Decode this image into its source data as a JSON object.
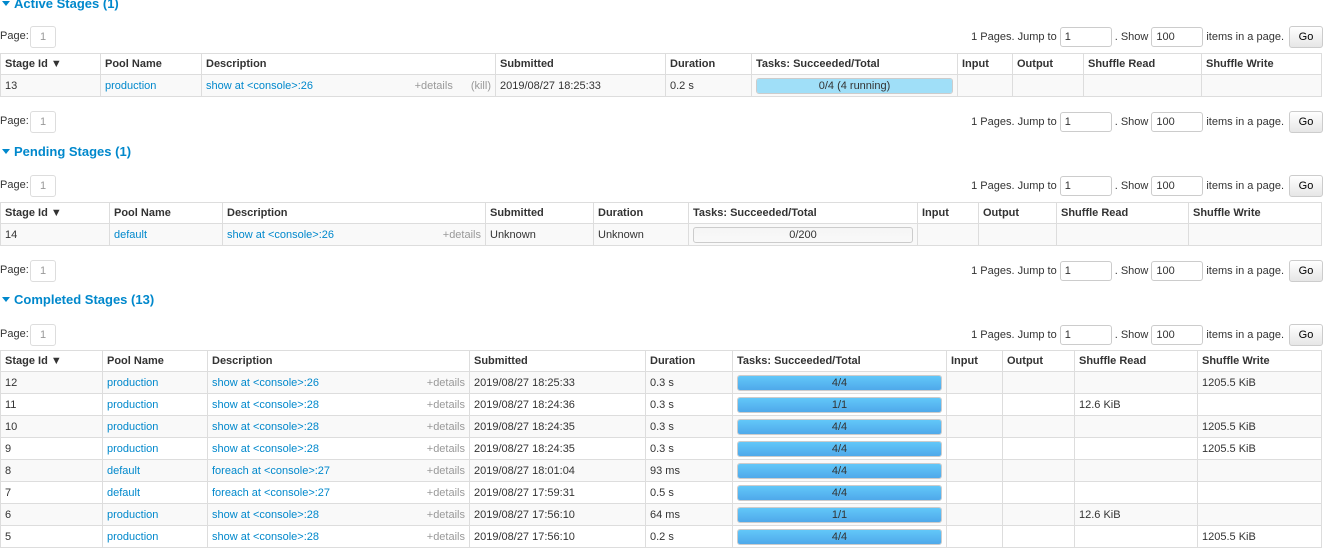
{
  "pager": {
    "page_label": "Page:",
    "page": "1",
    "pages_text": "1 Pages. Jump to",
    "jump_value": "1",
    "show_text": ". Show",
    "show_value": "100",
    "items_text": "items in a page.",
    "go_label": "Go"
  },
  "columns": [
    "Stage Id ▼",
    "Pool Name",
    "Description",
    "Submitted",
    "Duration",
    "Tasks: Succeeded/Total",
    "Input",
    "Output",
    "Shuffle Read",
    "Shuffle Write"
  ],
  "details_label": "+details",
  "kill_label": "(kill)",
  "sections": [
    {
      "title": "Active Stages (1)",
      "rows": [
        {
          "id": "13",
          "pool": "production",
          "desc": "show at <console>:26",
          "submitted": "2019/08/27 18:25:33",
          "duration": "0.2 s",
          "tasks": "0/4 (4 running)",
          "succeeded": 0,
          "running": 4,
          "total": 4,
          "input": "",
          "output": "",
          "read": "",
          "write": "",
          "kill": true
        }
      ]
    },
    {
      "title": "Pending Stages (1)",
      "rows": [
        {
          "id": "14",
          "pool": "default",
          "desc": "show at <console>:26",
          "submitted": "Unknown",
          "duration": "Unknown",
          "tasks": "0/200",
          "succeeded": 0,
          "running": 0,
          "total": 200,
          "input": "",
          "output": "",
          "read": "",
          "write": ""
        }
      ]
    },
    {
      "title": "Completed Stages (13)",
      "rows": [
        {
          "id": "12",
          "pool": "production",
          "desc": "show at <console>:26",
          "submitted": "2019/08/27 18:25:33",
          "duration": "0.3 s",
          "tasks": "4/4",
          "succeeded": 4,
          "running": 0,
          "total": 4,
          "input": "",
          "output": "",
          "read": "",
          "write": "1205.5 KiB"
        },
        {
          "id": "11",
          "pool": "production",
          "desc": "show at <console>:28",
          "submitted": "2019/08/27 18:24:36",
          "duration": "0.3 s",
          "tasks": "1/1",
          "succeeded": 1,
          "running": 0,
          "total": 1,
          "input": "",
          "output": "",
          "read": "12.6 KiB",
          "write": ""
        },
        {
          "id": "10",
          "pool": "production",
          "desc": "show at <console>:28",
          "submitted": "2019/08/27 18:24:35",
          "duration": "0.3 s",
          "tasks": "4/4",
          "succeeded": 4,
          "running": 0,
          "total": 4,
          "input": "",
          "output": "",
          "read": "",
          "write": "1205.5 KiB"
        },
        {
          "id": "9",
          "pool": "production",
          "desc": "show at <console>:28",
          "submitted": "2019/08/27 18:24:35",
          "duration": "0.3 s",
          "tasks": "4/4",
          "succeeded": 4,
          "running": 0,
          "total": 4,
          "input": "",
          "output": "",
          "read": "",
          "write": "1205.5 KiB"
        },
        {
          "id": "8",
          "pool": "default",
          "desc": "foreach at <console>:27",
          "submitted": "2019/08/27 18:01:04",
          "duration": "93 ms",
          "tasks": "4/4",
          "succeeded": 4,
          "running": 0,
          "total": 4,
          "input": "",
          "output": "",
          "read": "",
          "write": ""
        },
        {
          "id": "7",
          "pool": "default",
          "desc": "foreach at <console>:27",
          "submitted": "2019/08/27 17:59:31",
          "duration": "0.5 s",
          "tasks": "4/4",
          "succeeded": 4,
          "running": 0,
          "total": 4,
          "input": "",
          "output": "",
          "read": "",
          "write": ""
        },
        {
          "id": "6",
          "pool": "production",
          "desc": "show at <console>:28",
          "submitted": "2019/08/27 17:56:10",
          "duration": "64 ms",
          "tasks": "1/1",
          "succeeded": 1,
          "running": 0,
          "total": 1,
          "input": "",
          "output": "",
          "read": "12.6 KiB",
          "write": ""
        },
        {
          "id": "5",
          "pool": "production",
          "desc": "show at <console>:28",
          "submitted": "2019/08/27 17:56:10",
          "duration": "0.2 s",
          "tasks": "4/4",
          "succeeded": 4,
          "running": 0,
          "total": 4,
          "input": "",
          "output": "",
          "read": "",
          "write": "1205.5 KiB"
        }
      ]
    }
  ]
}
